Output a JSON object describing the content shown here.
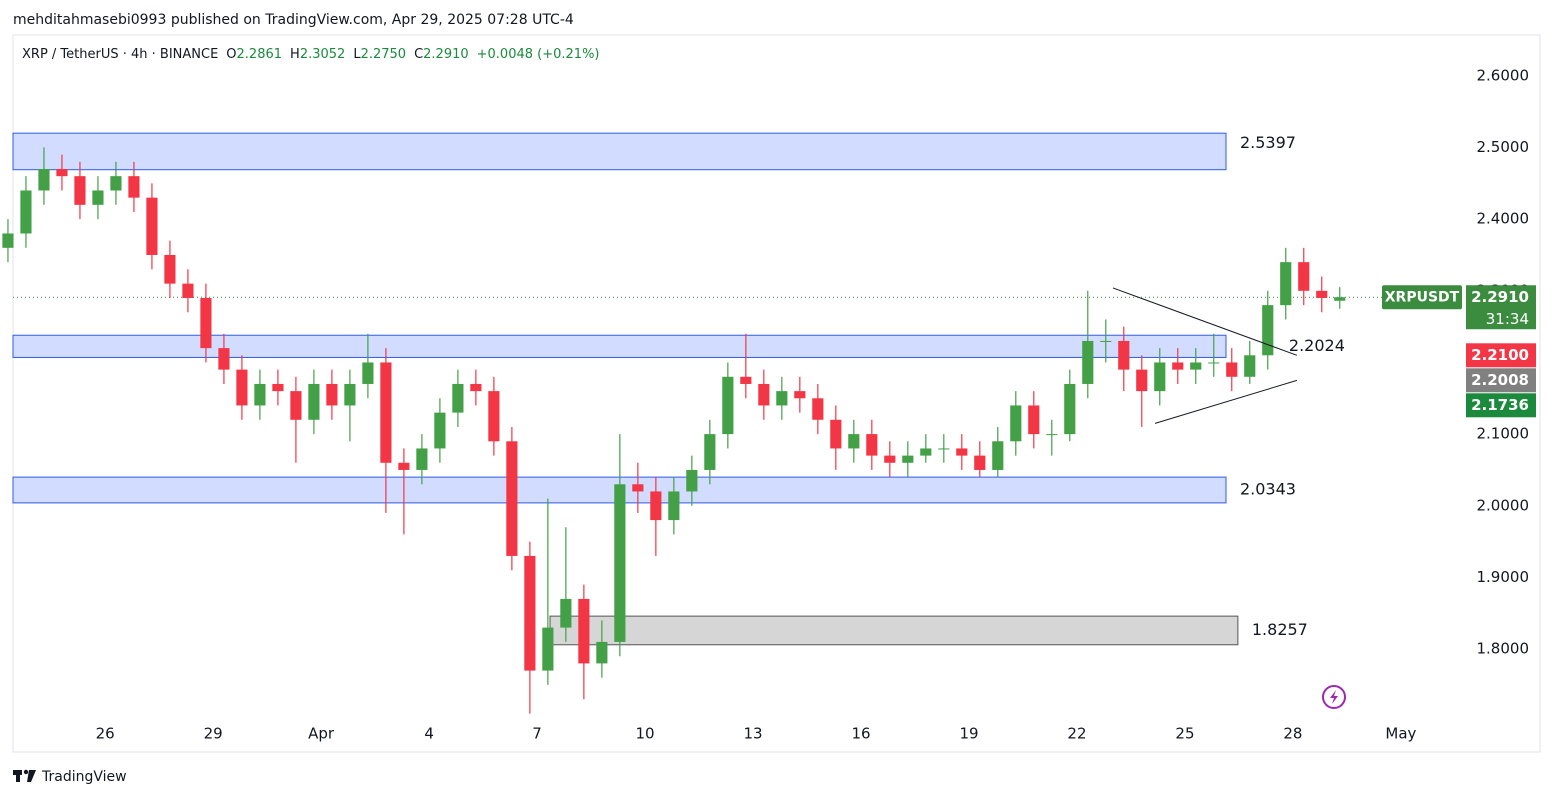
{
  "header": {
    "publisher": "mehditahmasebi0993 published on TradingView.com, Apr 29, 2025 07:28 UTC-4",
    "symbol": "XRP / TetherUS · 4h · BINANCE",
    "open_label": "O",
    "open": "2.2861",
    "high_label": "H",
    "high": "2.3052",
    "low_label": "L",
    "low": "2.2750",
    "close_label": "C",
    "close": "2.2910",
    "change": "+0.0048 (+0.21%)"
  },
  "footer": {
    "brand": "TradingView"
  },
  "chart_data": {
    "type": "candlestick",
    "up_color": "#43a047",
    "down_color": "#f23645",
    "x": [
      23.3,
      23.8,
      24.3,
      24.8,
      25.3,
      25.8,
      26.3,
      26.8,
      27.3,
      27.8,
      28.3,
      28.8,
      29.3,
      29.8,
      30.3,
      30.8,
      31.3,
      31.8,
      32.3,
      32.8,
      33.3,
      33.8,
      34.3,
      34.8,
      35.3,
      35.8,
      36.3,
      36.8,
      37.3,
      37.8,
      38.3,
      38.8,
      39.3,
      39.8,
      40.3,
      40.8,
      41.3,
      41.8,
      42.3,
      42.8,
      43.3,
      43.8,
      44.3,
      44.8,
      45.3,
      45.8,
      46.3,
      46.8,
      47.3,
      47.8,
      48.3,
      48.8,
      49.3,
      49.8,
      50.3,
      50.8,
      51.3,
      51.8,
      52.3,
      52.8,
      53.3,
      53.8,
      54.3,
      54.8,
      55.3,
      55.8,
      56.3,
      56.8,
      57.3,
      57.8,
      58.3,
      58.8,
      59.3,
      59.8,
      60.3
    ],
    "open": [
      2.36,
      2.38,
      2.44,
      2.47,
      2.46,
      2.42,
      2.44,
      2.46,
      2.43,
      2.35,
      2.31,
      2.29,
      2.22,
      2.19,
      2.14,
      2.17,
      2.16,
      2.12,
      2.17,
      2.14,
      2.17,
      2.2,
      2.06,
      2.05,
      2.08,
      2.13,
      2.17,
      2.16,
      2.09,
      1.93,
      1.77,
      1.83,
      1.87,
      1.78,
      1.81,
      2.03,
      2.02,
      1.98,
      2.02,
      2.05,
      2.1,
      2.18,
      2.17,
      2.14,
      2.16,
      2.15,
      2.12,
      2.08,
      2.1,
      2.07,
      2.06,
      2.07,
      2.08,
      2.08,
      2.07,
      2.05,
      2.09,
      2.14,
      2.1,
      2.1,
      2.17,
      2.23,
      2.23,
      2.19,
      2.16,
      2.2,
      2.19,
      2.2,
      2.2,
      2.18,
      2.21,
      2.28,
      2.34,
      2.3,
      2.2861
    ],
    "high": [
      2.4,
      2.46,
      2.5,
      2.49,
      2.48,
      2.46,
      2.48,
      2.48,
      2.45,
      2.37,
      2.33,
      2.31,
      2.24,
      2.21,
      2.19,
      2.19,
      2.18,
      2.19,
      2.19,
      2.19,
      2.24,
      2.22,
      2.08,
      2.1,
      2.15,
      2.19,
      2.19,
      2.18,
      2.11,
      1.95,
      2.01,
      1.97,
      1.89,
      1.84,
      2.1,
      2.06,
      2.04,
      2.04,
      2.07,
      2.12,
      2.2,
      2.24,
      2.19,
      2.18,
      2.18,
      2.17,
      2.14,
      2.12,
      2.12,
      2.09,
      2.09,
      2.1,
      2.1,
      2.1,
      2.09,
      2.11,
      2.16,
      2.16,
      2.12,
      2.19,
      2.3,
      2.26,
      2.25,
      2.21,
      2.22,
      2.22,
      2.22,
      2.24,
      2.22,
      2.23,
      2.3,
      2.36,
      2.36,
      2.32,
      2.3052
    ],
    "low": [
      2.34,
      2.36,
      2.42,
      2.44,
      2.4,
      2.4,
      2.42,
      2.41,
      2.33,
      2.29,
      2.27,
      2.2,
      2.17,
      2.12,
      2.12,
      2.14,
      2.06,
      2.1,
      2.12,
      2.09,
      2.15,
      1.99,
      1.96,
      2.03,
      2.06,
      2.11,
      2.14,
      2.07,
      1.91,
      1.71,
      1.75,
      1.81,
      1.73,
      1.76,
      1.79,
      1.99,
      1.93,
      1.96,
      2.0,
      2.03,
      2.08,
      2.15,
      2.12,
      2.12,
      2.13,
      2.1,
      2.05,
      2.06,
      2.05,
      2.04,
      2.04,
      2.06,
      2.06,
      2.05,
      2.04,
      2.04,
      2.07,
      2.08,
      2.07,
      2.09,
      2.15,
      2.2,
      2.16,
      2.11,
      2.14,
      2.17,
      2.17,
      2.18,
      2.16,
      2.17,
      2.19,
      2.26,
      2.28,
      2.27,
      2.275
    ],
    "close": [
      2.38,
      2.44,
      2.47,
      2.46,
      2.42,
      2.44,
      2.46,
      2.43,
      2.35,
      2.31,
      2.29,
      2.22,
      2.19,
      2.14,
      2.17,
      2.16,
      2.12,
      2.17,
      2.14,
      2.17,
      2.2,
      2.06,
      2.05,
      2.08,
      2.13,
      2.17,
      2.16,
      2.09,
      1.93,
      1.77,
      1.83,
      1.87,
      1.78,
      1.81,
      2.03,
      2.02,
      1.98,
      2.02,
      2.05,
      2.1,
      2.18,
      2.17,
      2.14,
      2.16,
      2.15,
      2.12,
      2.08,
      2.1,
      2.07,
      2.06,
      2.07,
      2.08,
      2.08,
      2.07,
      2.05,
      2.09,
      2.14,
      2.1,
      2.1,
      2.17,
      2.23,
      2.23,
      2.19,
      2.16,
      2.2,
      2.19,
      2.2,
      2.2,
      2.18,
      2.21,
      2.28,
      2.34,
      2.3,
      2.29,
      2.291
    ],
    "xlim": [
      23.44,
      63.78
    ],
    "xticks": [
      26,
      29,
      {
        "value": 32,
        "label": "Apr"
      },
      {
        "value": 35,
        "label": "4"
      },
      {
        "value": 38,
        "label": "7"
      },
      {
        "value": 41,
        "label": "10"
      },
      {
        "value": 44,
        "label": "13"
      },
      {
        "value": 47,
        "label": "16"
      },
      {
        "value": 50,
        "label": "19"
      },
      {
        "value": 53,
        "label": "22"
      },
      {
        "value": 56,
        "label": "25"
      },
      {
        "value": 59,
        "label": "28"
      },
      {
        "value": 62,
        "label": "May"
      }
    ],
    "ylim": [
      1.708,
      2.657
    ],
    "yticks": [
      {
        "value": 1.8,
        "label": "1.8000"
      },
      {
        "value": 1.9,
        "label": "1.9000"
      },
      {
        "value": 2.0,
        "label": "2.0000"
      },
      {
        "value": 2.1,
        "label": "2.1000"
      },
      {
        "value": 2.2,
        "label": "2.2000"
      },
      {
        "value": 2.3,
        "label": "2.3000"
      },
      {
        "value": 2.4,
        "label": "2.4000"
      },
      {
        "value": 2.5,
        "label": "2.5000"
      },
      {
        "value": 2.6,
        "label": "2.6000"
      }
    ],
    "zones": [
      {
        "x": [
          23.44,
          57.14
        ],
        "y": [
          2.469,
          2.52
        ],
        "label": "2.5397",
        "color": "#d1dcff",
        "stroke": "#2f5bea"
      },
      {
        "x": [
          23.44,
          57.14
        ],
        "y": [
          2.207,
          2.238
        ],
        "label": "2.2024",
        "color": "#d1dcff",
        "stroke": "#2f5bea"
      },
      {
        "x": [
          23.44,
          57.14
        ],
        "y": [
          2.004,
          2.04
        ],
        "label": "2.0343",
        "color": "#d1dcff",
        "stroke": "#2f5bea"
      },
      {
        "x": [
          38.36,
          57.47
        ],
        "y": [
          1.806,
          1.846
        ],
        "label": "1.8257",
        "color": "#d6d6d6",
        "stroke": "#555555"
      }
    ],
    "trendlines": [
      {
        "x": [
          54.0,
          59.11
        ],
        "y": [
          2.304,
          2.21
        ]
      },
      {
        "x": [
          55.17,
          59.11
        ],
        "y": [
          2.115,
          2.175
        ]
      }
    ],
    "price_labels": [
      {
        "value": 2.291,
        "label": "2.2910",
        "name": "XRPUSDT",
        "countdown": "31:34",
        "color": "#3b8c3f"
      },
      {
        "value": 2.21,
        "label": "2.2100",
        "color": "#f23645"
      },
      {
        "value": 2.2008,
        "label": "2.2008",
        "color": "#808080"
      },
      {
        "value": 2.1736,
        "label": "2.1736",
        "color": "#1b8a3d"
      }
    ]
  }
}
